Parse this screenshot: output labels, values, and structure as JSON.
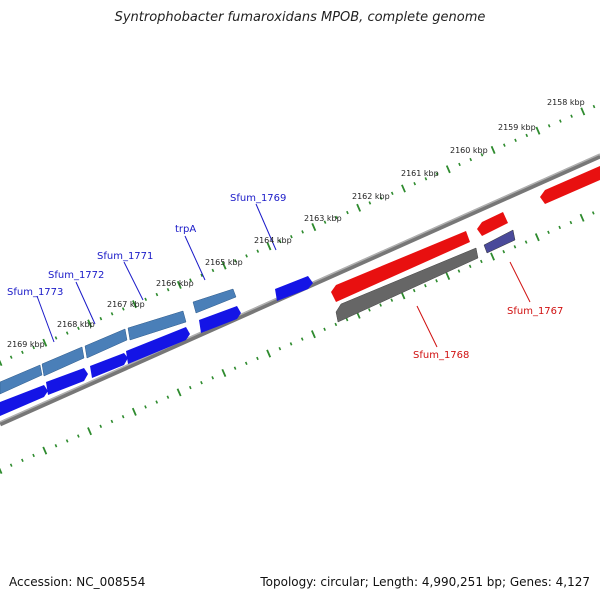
{
  "title": "Syntrophobacter fumaroxidans MPOB, complete genome",
  "footer": {
    "accession": "Accession: NC_008554",
    "topology": "Topology: circular; Length: 4,990,251 bp; Genes: 4,127"
  },
  "colors": {
    "tick_dots": "#2e8b2e",
    "backbone": "#888888",
    "forward_gene": "#1414e6",
    "forward_cds_light": "#4a7fb8",
    "reverse_gene": "#e81010",
    "reverse_gene_gray": "#666666",
    "reverse_gene_purple": "#4a4a9a",
    "label_forward": "#1a1ac8",
    "label_reverse": "#d01010"
  },
  "scale": {
    "tick_labels": [
      "2158 kbp",
      "2159 kbp",
      "2160 kbp",
      "2161 kbp",
      "2162 kbp",
      "2163 kbp",
      "2164 kbp",
      "2165 kbp",
      "2166 kbp",
      "2167 kbp",
      "2168 kbp",
      "2169 kbp"
    ]
  },
  "gene_labels": {
    "forward": [
      "Sfum_1773",
      "Sfum_1772",
      "Sfum_1771",
      "trpA",
      "Sfum_1769"
    ],
    "reverse": [
      "Sfum_1768",
      "Sfum_1767"
    ]
  }
}
